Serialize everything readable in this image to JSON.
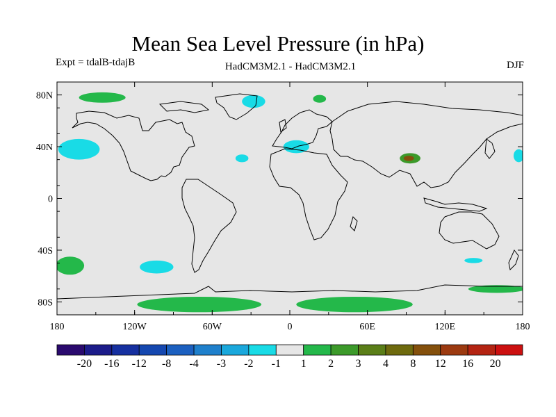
{
  "title": "Mean Sea Level Pressure (in hPa)",
  "subtitle_left": "Expt = tdalB-tdajB",
  "subtitle_center": "HadCM3M2.1 - HadCM3M2.1",
  "subtitle_right": "DJF",
  "lat_labels": [
    {
      "lat": 80,
      "text": "80N"
    },
    {
      "lat": 40,
      "text": "40N"
    },
    {
      "lat": 0,
      "text": "0"
    },
    {
      "lat": -40,
      "text": "40S"
    },
    {
      "lat": -80,
      "text": "80S"
    }
  ],
  "lon_labels": [
    {
      "lon": -180,
      "text": "180"
    },
    {
      "lon": -120,
      "text": "120W"
    },
    {
      "lon": -60,
      "text": "60W"
    },
    {
      "lon": 0,
      "text": "0"
    },
    {
      "lon": 60,
      "text": "60E"
    },
    {
      "lon": 120,
      "text": "120E"
    },
    {
      "lon": 180,
      "text": "180"
    }
  ],
  "colorbar": {
    "colors": [
      "#2a0a6e",
      "#1c1c8a",
      "#1630a0",
      "#1548b0",
      "#1c60c0",
      "#1f80cc",
      "#1aa8dc",
      "#19dbe6",
      "#e6e6e6",
      "#24b84a",
      "#3c9a2a",
      "#5a7e18",
      "#6e6a0e",
      "#84500c",
      "#9c3a10",
      "#b42412",
      "#cc1010"
    ],
    "labels": [
      "-20",
      "-16",
      "-12",
      "-8",
      "-4",
      "-3",
      "-2",
      "-1",
      "1",
      "2",
      "3",
      "4",
      "8",
      "12",
      "16",
      "20"
    ]
  },
  "colors": {
    "background_fill": "#e6e6e6",
    "negative_1_to_2": "#19dbe6",
    "positive_1_to_2": "#24b84a",
    "positive_2_to_3": "#3c9a2a",
    "positive_3_to_4": "#5a7e18",
    "positive_4_to_8": "#84500c"
  },
  "anomaly_regions": [
    {
      "name": "north-pacific-low",
      "sign": "negative",
      "color": "#19dbe6",
      "lon": -163,
      "lat": 38,
      "rlon": 16,
      "rlat": 8
    },
    {
      "name": "greenland-low",
      "sign": "negative",
      "color": "#19dbe6",
      "lon": -28,
      "lat": 75,
      "rlon": 9,
      "rlat": 5
    },
    {
      "name": "north-atlantic-low",
      "sign": "negative",
      "color": "#19dbe6",
      "lon": -37,
      "lat": 31,
      "rlon": 5,
      "rlat": 3
    },
    {
      "name": "mediterranean-low",
      "sign": "negative",
      "color": "#19dbe6",
      "lon": 5,
      "lat": 40,
      "rlon": 10,
      "rlat": 5
    },
    {
      "name": "west-pacific-low",
      "sign": "negative",
      "color": "#19dbe6",
      "lon": 177,
      "lat": 33,
      "rlon": 4,
      "rlat": 5
    },
    {
      "name": "south-pacific-low",
      "sign": "negative",
      "color": "#19dbe6",
      "lon": -103,
      "lat": -53,
      "rlon": 13,
      "rlat": 5
    },
    {
      "name": "south-indian-low",
      "sign": "negative",
      "color": "#19dbe6",
      "lon": 142,
      "lat": -48,
      "rlon": 7,
      "rlat": 2
    },
    {
      "name": "arctic-high",
      "sign": "positive",
      "color": "#24b84a",
      "lon": -145,
      "lat": 78,
      "rlon": 18,
      "rlat": 4
    },
    {
      "name": "barents-high",
      "sign": "positive",
      "color": "#24b84a",
      "lon": 23,
      "lat": 77,
      "rlon": 5,
      "rlat": 3
    },
    {
      "name": "tibet-high",
      "sign": "positive",
      "color": "#3c9a2a",
      "lon": 93,
      "lat": 31,
      "rlon": 8,
      "rlat": 4
    },
    {
      "name": "tibet-high-core",
      "sign": "positive",
      "color": "#84500c",
      "lon": 92,
      "lat": 31,
      "rlon": 4,
      "rlat": 2
    },
    {
      "name": "south-pacific-high",
      "sign": "positive",
      "color": "#24b84a",
      "lon": -170,
      "lat": -52,
      "rlon": 11,
      "rlat": 7
    },
    {
      "name": "antarctic-high-west",
      "sign": "positive",
      "color": "#24b84a",
      "lon": -70,
      "lat": -82,
      "rlon": 48,
      "rlat": 6
    },
    {
      "name": "antarctic-high-east",
      "sign": "positive",
      "color": "#24b84a",
      "lon": 50,
      "lat": -82,
      "rlon": 45,
      "rlat": 6
    },
    {
      "name": "ross-sea-high",
      "sign": "positive",
      "color": "#24b84a",
      "lon": 160,
      "lat": -70,
      "rlon": 22,
      "rlat": 3
    }
  ]
}
